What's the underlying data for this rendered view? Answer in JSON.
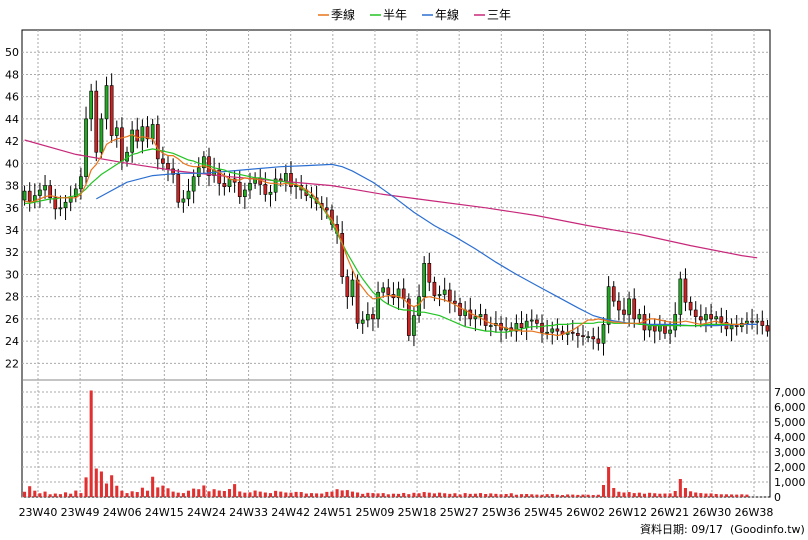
{
  "chart_data": [
    {
      "type": "candlestick",
      "legend": [
        {
          "name": "季線",
          "color": "#e8741c"
        },
        {
          "name": "半年",
          "color": "#22c422"
        },
        {
          "name": "年線",
          "color": "#2c6fd1"
        },
        {
          "name": "三年",
          "color": "#c8287a"
        }
      ],
      "ylim": [
        20.5,
        52
      ],
      "y_ticks": [
        22,
        24,
        26,
        28,
        30,
        32,
        34,
        36,
        38,
        40,
        42,
        44,
        46,
        48,
        50
      ],
      "x_ticks": [
        "23W40",
        "23W49",
        "24W06",
        "24W15",
        "24W24",
        "24W33",
        "24W42",
        "24W51",
        "25W09",
        "25W18",
        "25W27",
        "25W36",
        "25W45",
        "26W02",
        "26W12",
        "26W21",
        "26W30",
        "26W38"
      ],
      "grid": true,
      "up_color": "#22aa22",
      "down_color": "#cc2222",
      "weekly_close": [
        37.5,
        36.6,
        37.1,
        37.6,
        38.0,
        36.9,
        35.9,
        36.0,
        36.5,
        37.0,
        37.7,
        38.8,
        44.0,
        46.5,
        41.0,
        44.0,
        47.0,
        42.5,
        43.2,
        40.2,
        41.0,
        43.0,
        42.0,
        43.3,
        42.2,
        43.5,
        40.4,
        40.0,
        39.5,
        39.0,
        36.5,
        36.8,
        37.5,
        38.8,
        39.6,
        40.6,
        38.9,
        39.4,
        38.2,
        37.9,
        38.6,
        38.3,
        37.0,
        37.6,
        38.2,
        38.7,
        38.1,
        37.2,
        37.4,
        38.6,
        38.4,
        39.1,
        37.9,
        38.0,
        37.6,
        37.1,
        36.9,
        36.4,
        36.0,
        35.8,
        34.5,
        33.7,
        29.8,
        28.0,
        29.5,
        25.6,
        25.9,
        26.4,
        26.0,
        28.4,
        28.8,
        28.2,
        27.9,
        28.7,
        27.8,
        24.5,
        26.3,
        28.0,
        31.0,
        29.3,
        28.1,
        28.2,
        28.6,
        27.6,
        27.4,
        26.3,
        26.8,
        26.0,
        26.2,
        26.4,
        25.4,
        25.4,
        25.6,
        25.0,
        25.2,
        24.9,
        25.6,
        25.2,
        25.8,
        25.9,
        25.6,
        24.8,
        24.8,
        25.1,
        24.9,
        24.6,
        24.8,
        24.7,
        24.5,
        24.4,
        24.4,
        24.2,
        23.8,
        25.5,
        28.9,
        27.6,
        26.8,
        26.4,
        27.8,
        26.0,
        26.4,
        25.0,
        25.4,
        24.9,
        25.4,
        24.7,
        25.0,
        26.4,
        29.6,
        27.5,
        26.8,
        26.2,
        25.9,
        26.4,
        26.0,
        26.2,
        25.7,
        25.1,
        25.4,
        25.3,
        25.6,
        25.8,
        25.7,
        25.8,
        25.4,
        24.9
      ],
      "ma_quarter": [
        36.6,
        36.5,
        36.6,
        36.8,
        37.0,
        37.1,
        37.0,
        36.9,
        36.9,
        36.9,
        36.9,
        37.2,
        38.1,
        39.4,
        39.9,
        40.7,
        41.7,
        42.0,
        42.2,
        42.3,
        42.4,
        42.6,
        42.3,
        42.4,
        42.3,
        42.2,
        41.3,
        40.9,
        40.7,
        40.7,
        40.4,
        40.0,
        39.8,
        39.7,
        39.7,
        39.8,
        39.6,
        39.4,
        39.2,
        38.9,
        38.6,
        38.5,
        38.5,
        38.7,
        38.6,
        38.6,
        38.5,
        38.3,
        38.2,
        38.2,
        38.1,
        38.2,
        38.1,
        38.1,
        37.9,
        37.6,
        37.3,
        36.8,
        36.2,
        35.5,
        34.9,
        34.0,
        32.8,
        31.5,
        30.4,
        29.4,
        28.8,
        28.2,
        27.8,
        27.9,
        28.0,
        28.1,
        28.1,
        28.0,
        27.8,
        27.3,
        27.1,
        27.3,
        27.9,
        28.0,
        27.9,
        27.8,
        27.7,
        27.5,
        27.3,
        27.0,
        26.8,
        26.5,
        26.3,
        26.1,
        25.8,
        25.6,
        25.5,
        25.3,
        25.2,
        25.0,
        25.0,
        24.9,
        24.9,
        24.9,
        24.8,
        24.7,
        24.6,
        24.6,
        24.5,
        24.6,
        24.8,
        25.0,
        25.3,
        25.6,
        25.9,
        25.9,
        26.0,
        25.9,
        25.8,
        25.7,
        25.7,
        25.6,
        25.6,
        25.6,
        25.6,
        25.8,
        26.0,
        26.0,
        25.9,
        25.8,
        25.7,
        25.7,
        25.7,
        25.8,
        25.7,
        25.6,
        25.5,
        25.6,
        25.7,
        25.8,
        25.6,
        25.6,
        25.5,
        25.5,
        25.5,
        25.6
      ],
      "ma_half": [
        36.4,
        36.4,
        36.5,
        36.6,
        36.7,
        36.8,
        36.8,
        36.9,
        36.9,
        37.0,
        37.1,
        37.3,
        37.7,
        38.2,
        38.6,
        39.0,
        39.3,
        39.6,
        39.9,
        40.2,
        40.5,
        40.8,
        40.9,
        41.1,
        41.2,
        41.3,
        41.2,
        41.1,
        41.0,
        40.9,
        40.7,
        40.5,
        40.3,
        40.2,
        40.0,
        39.9,
        39.8,
        39.6,
        39.5,
        39.4,
        39.2,
        39.1,
        39.0,
        38.9,
        38.8,
        38.7,
        38.7,
        38.6,
        38.5,
        38.4,
        38.4,
        38.3,
        38.2,
        38.1,
        37.8,
        37.4,
        37.0,
        36.6,
        36.1,
        35.4,
        34.6,
        33.7,
        32.8,
        31.9,
        31.1,
        30.3,
        29.6,
        29.0,
        28.4,
        28.0,
        27.6,
        27.3,
        27.1,
        26.9,
        26.8,
        26.8,
        26.7,
        26.6,
        26.6,
        26.5,
        26.4,
        26.3,
        26.1,
        25.9,
        25.7,
        25.5,
        25.3,
        25.2,
        25.1,
        25.0,
        24.9,
        24.9,
        24.8,
        24.8,
        24.8,
        24.9,
        25.0,
        25.1,
        25.2,
        25.3,
        25.3,
        25.3,
        25.4,
        25.4,
        25.5,
        25.5,
        25.5,
        25.6,
        25.6,
        25.6,
        25.6,
        25.6,
        25.7,
        25.7,
        25.7,
        25.6,
        25.6,
        25.6,
        25.6,
        25.6,
        25.5,
        25.5,
        25.4,
        25.4,
        25.4,
        25.4,
        25.4,
        25.4,
        25.4,
        25.4,
        25.4,
        25.4,
        25.4,
        25.5,
        25.5,
        25.5,
        25.5,
        25.5,
        25.5,
        25.5
      ],
      "ma_year": [
        null,
        null,
        null,
        null,
        null,
        null,
        null,
        null,
        null,
        null,
        null,
        null,
        null,
        null,
        null,
        null,
        null,
        null,
        null,
        null,
        null,
        null,
        null,
        null,
        null,
        null,
        null,
        null,
        null,
        null,
        null,
        null,
        null,
        null,
        null,
        null,
        null,
        null,
        null,
        null,
        null,
        null,
        null,
        null,
        null,
        null,
        null,
        null,
        null,
        null,
        null,
        null,
        null,
        null,
        null,
        null,
        null,
        null,
        null,
        null,
        null,
        null,
        null,
        null,
        null,
        null,
        null,
        null,
        null,
        null,
        null,
        null,
        null,
        null,
        null,
        null,
        null,
        null,
        null,
        null,
        null,
        null,
        null,
        null,
        null,
        null,
        null,
        null,
        null,
        null,
        null,
        null,
        null,
        null,
        null,
        null,
        null,
        null,
        null,
        null,
        null,
        null,
        null,
        null,
        null,
        null,
        null,
        null,
        null,
        null,
        null,
        null,
        null,
        null,
        null,
        null,
        null,
        null,
        null,
        null,
        null,
        null,
        null,
        null,
        null,
        null,
        null,
        null,
        null,
        null,
        null,
        null,
        null,
        null,
        null,
        null,
        null,
        null,
        null,
        null,
        null,
        null,
        null,
        null
      ],
      "ma_year_points": [
        [
          14,
          36.8
        ],
        [
          20,
          38.3
        ],
        [
          25,
          38.9
        ],
        [
          30,
          39.1
        ],
        [
          35,
          39.1
        ],
        [
          40,
          39.3
        ],
        [
          45,
          39.5
        ],
        [
          50,
          39.7
        ],
        [
          55,
          39.8
        ],
        [
          60,
          39.9
        ],
        [
          62,
          39.7
        ],
        [
          64,
          39.3
        ],
        [
          68,
          38.3
        ],
        [
          72,
          37.0
        ],
        [
          76,
          35.6
        ],
        [
          80,
          34.4
        ],
        [
          84,
          33.4
        ],
        [
          88,
          32.3
        ],
        [
          92,
          31.1
        ],
        [
          96,
          30.0
        ],
        [
          100,
          29.0
        ],
        [
          104,
          28.0
        ],
        [
          108,
          27.0
        ],
        [
          111,
          26.3
        ],
        [
          114,
          25.9
        ],
        [
          118,
          25.6
        ],
        [
          122,
          25.5
        ],
        [
          126,
          25.5
        ],
        [
          130,
          25.4
        ],
        [
          135,
          25.4
        ],
        [
          140,
          25.5
        ],
        [
          143,
          25.5
        ]
      ],
      "ma_3year_points": [
        [
          0,
          42.1
        ],
        [
          10,
          40.8
        ],
        [
          20,
          40.0
        ],
        [
          30,
          39.3
        ],
        [
          40,
          38.8
        ],
        [
          50,
          38.4
        ],
        [
          60,
          38.0
        ],
        [
          70,
          37.2
        ],
        [
          80,
          36.6
        ],
        [
          90,
          36.0
        ],
        [
          100,
          35.3
        ],
        [
          110,
          34.4
        ],
        [
          120,
          33.6
        ],
        [
          130,
          32.6
        ],
        [
          140,
          31.7
        ],
        [
          143,
          31.5
        ]
      ],
      "volume": {
        "ylim": [
          0,
          7800
        ],
        "y_ticks": [
          "7,000",
          "6,000",
          "5,000",
          "4,000",
          "3,000",
          "2,000",
          "1,000",
          "0"
        ],
        "y_tick_values": [
          7000,
          6000,
          5000,
          4000,
          3000,
          2000,
          1000,
          0
        ],
        "values": [
          350,
          720,
          420,
          250,
          360,
          180,
          230,
          190,
          310,
          220,
          430,
          260,
          1310,
          7100,
          1900,
          1700,
          900,
          1450,
          750,
          420,
          260,
          380,
          330,
          620,
          420,
          1350,
          640,
          760,
          580,
          360,
          290,
          260,
          420,
          560,
          520,
          770,
          380,
          520,
          430,
          400,
          530,
          860,
          370,
          290,
          310,
          430,
          360,
          300,
          260,
          410,
          360,
          300,
          290,
          340,
          330,
          230,
          260,
          240,
          230,
          340,
          360,
          520,
          440,
          460,
          360,
          300,
          210,
          280,
          260,
          240,
          260,
          180,
          220,
          210,
          270,
          190,
          280,
          250,
          330,
          290,
          240,
          290,
          250,
          210,
          250,
          170,
          260,
          210,
          220,
          260,
          200,
          240,
          210,
          180,
          200,
          250,
          150,
          190,
          200,
          180,
          160,
          150,
          190,
          200,
          150,
          130,
          170,
          160,
          140,
          160,
          150,
          130,
          150,
          800,
          2000,
          600,
          350,
          300,
          330,
          260,
          290,
          220,
          280,
          250,
          220,
          230,
          240,
          400,
          1200,
          600,
          380,
          300,
          260,
          230,
          240,
          200,
          180,
          180,
          170,
          160,
          180,
          160
        ]
      }
    }
  ],
  "footer": {
    "date_label": "資料日期: 09/17",
    "source_label": "(Goodinfo.tw)"
  }
}
